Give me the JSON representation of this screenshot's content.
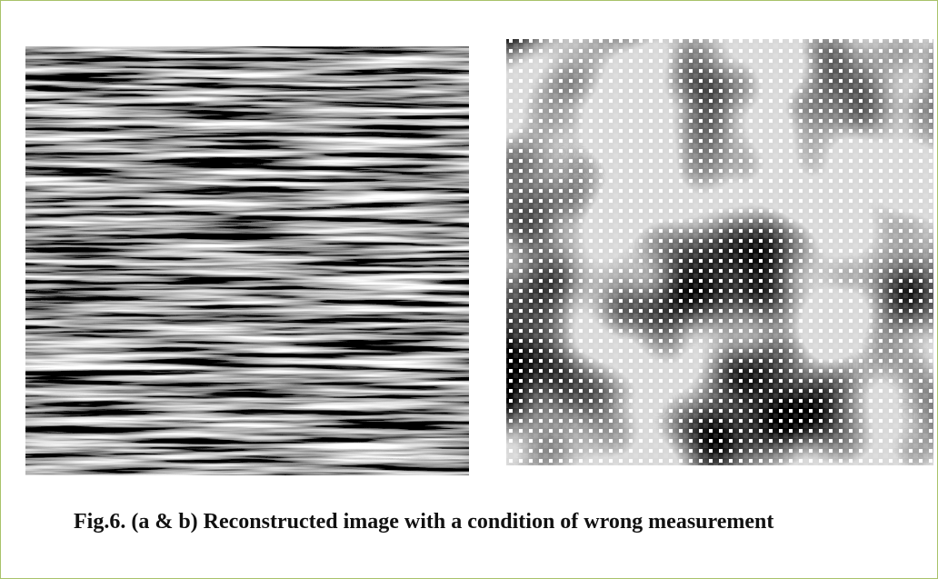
{
  "figure": {
    "caption": "Fig.6. (a & b) Reconstructed image with a condition of wrong measurement"
  }
}
